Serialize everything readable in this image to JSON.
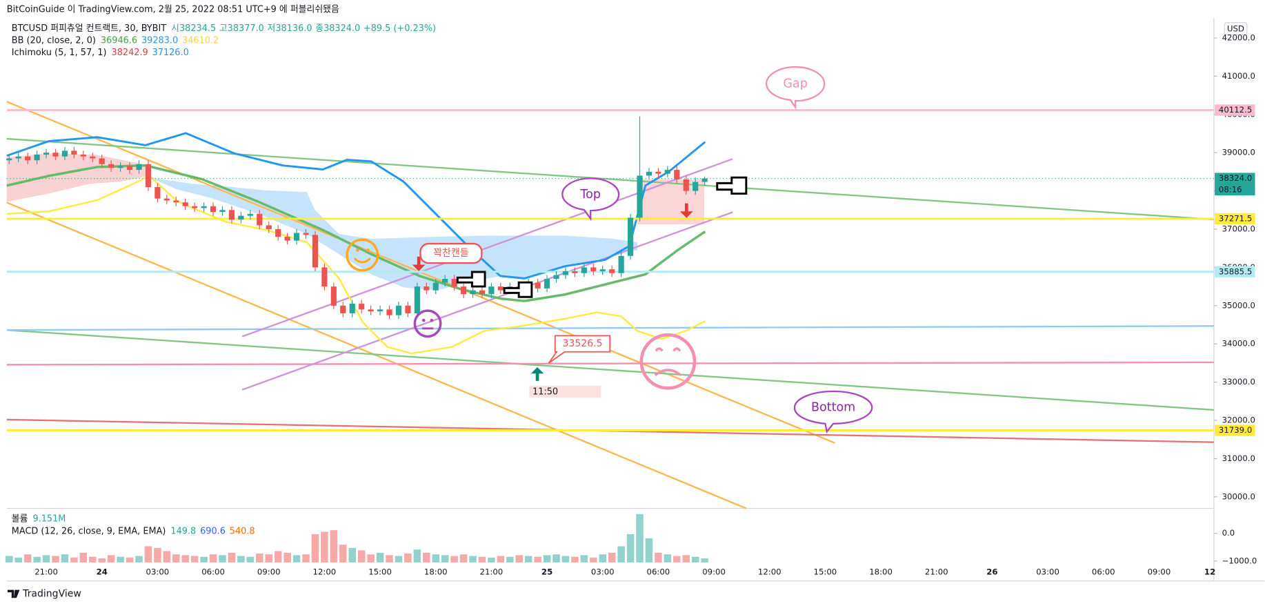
{
  "header": {
    "published": "BitCoinGuide 이 TradingView.com, 2월 25, 2022 08:51 UTC+9 에 퍼블리쉬됐음"
  },
  "chart_data": {
    "type": "candlestick",
    "symbol": "BTCUSD 퍼피츄얼 컨트랙트, 30, BYBIT",
    "ohlc_text": [
      "시38234.5",
      "고38377.0",
      "저38136.0",
      "종38324.0",
      "+89.5 (+0.23%)"
    ],
    "bb_text": {
      "name": "BB (20, close, 2, 0)",
      "basis": "36946.6",
      "upper": "39283.0",
      "lower": "34610.2"
    },
    "ichimoku_text": {
      "name": "Ichimoku (5, 1, 57, 1)",
      "a": "38242.9",
      "b": "37126.0"
    },
    "unit": "USD",
    "up_color": "#26a69a",
    "down_color": "#ef5350",
    "open": [
      38800,
      38850,
      38900,
      38800,
      38950,
      39000,
      38900,
      39050,
      38950,
      38900,
      38850,
      38700,
      38600,
      38650,
      38550,
      38700,
      38100,
      37800,
      37750,
      37700,
      37600,
      37550,
      37600,
      37450,
      37500,
      37250,
      37350,
      37400,
      37100,
      37000,
      36800,
      36700,
      36900,
      36850,
      36000,
      35500,
      35000,
      34800,
      35050,
      34900,
      34850,
      34900,
      34750,
      35000,
      34800,
      35500,
      35400,
      35600,
      35700,
      35500,
      35300,
      35400,
      35300,
      35500,
      35400,
      35500,
      35350,
      35600,
      35450,
      35700,
      35800,
      35900,
      35850,
      36000,
      35900,
      35950,
      35850,
      36300,
      37300,
      38400,
      38500,
      38450,
      38550,
      38300,
      38000,
      38234.5
    ],
    "high": [
      38950,
      39000,
      39000,
      39050,
      39100,
      39100,
      39150,
      39150,
      39050,
      39000,
      38950,
      38800,
      38750,
      38750,
      38800,
      38800,
      38200,
      37900,
      37850,
      37800,
      37700,
      37700,
      37700,
      37600,
      37600,
      37450,
      37500,
      37500,
      37200,
      37100,
      36900,
      37000,
      37000,
      36950,
      36100,
      35600,
      35100,
      35150,
      35150,
      35000,
      35000,
      35000,
      35100,
      35100,
      35600,
      35600,
      35700,
      35800,
      35800,
      35600,
      35500,
      35500,
      35600,
      35600,
      35600,
      35600,
      35700,
      35700,
      35800,
      35900,
      36000,
      36000,
      36100,
      36100,
      36050,
      36050,
      36400,
      37400,
      39950,
      38600,
      38600,
      38650,
      38650,
      38400,
      38350,
      38377
    ],
    "low": [
      38700,
      38750,
      38700,
      38700,
      38850,
      38800,
      38800,
      38850,
      38800,
      38750,
      38600,
      38500,
      38500,
      38450,
      38450,
      38000,
      37700,
      37650,
      37600,
      37500,
      37450,
      37450,
      37350,
      37350,
      37150,
      37150,
      37250,
      37000,
      36900,
      36700,
      36600,
      36600,
      36750,
      35900,
      35400,
      34900,
      34700,
      34700,
      34800,
      34750,
      34750,
      34650,
      34650,
      34700,
      34700,
      35300,
      35300,
      35500,
      35400,
      35200,
      35200,
      35200,
      35200,
      35300,
      35300,
      35250,
      35250,
      35350,
      35350,
      35600,
      35700,
      35750,
      35750,
      35800,
      35800,
      35750,
      35750,
      36200,
      37200,
      38300,
      38350,
      38350,
      38200,
      37900,
      37900,
      38136
    ],
    "close": [
      38850,
      38900,
      38800,
      38950,
      39000,
      38900,
      39050,
      38950,
      38900,
      38850,
      38700,
      38600,
      38650,
      38550,
      38700,
      38100,
      37800,
      37750,
      37700,
      37600,
      37550,
      37600,
      37450,
      37500,
      37250,
      37350,
      37400,
      37100,
      37000,
      36800,
      36700,
      36900,
      36850,
      36000,
      35500,
      35000,
      34800,
      35050,
      34900,
      34850,
      34900,
      34750,
      35000,
      34800,
      35500,
      35400,
      35600,
      35700,
      35500,
      35300,
      35400,
      35300,
      35500,
      35400,
      35500,
      35350,
      35600,
      35450,
      35700,
      35800,
      35900,
      35850,
      36000,
      35900,
      35950,
      35850,
      36300,
      37300,
      38400,
      38500,
      38450,
      38550,
      38300,
      38000,
      38234.5,
      38324
    ],
    "volume": [
      8,
      6,
      10,
      7,
      9,
      8,
      10,
      6,
      12,
      7,
      5,
      9,
      7,
      6,
      8,
      20,
      18,
      14,
      10,
      9,
      8,
      7,
      10,
      9,
      12,
      8,
      7,
      11,
      10,
      14,
      12,
      9,
      10,
      35,
      38,
      40,
      22,
      18,
      15,
      10,
      12,
      9,
      8,
      11,
      16,
      12,
      10,
      9,
      8,
      10,
      8,
      7,
      6,
      8,
      7,
      9,
      8,
      7,
      9,
      10,
      8,
      7,
      9,
      6,
      10,
      12,
      20,
      35,
      60,
      30,
      12,
      10,
      8,
      9,
      7,
      5
    ],
    "vlim": [
      0,
      70
    ],
    "ylim": [
      29750,
      42500
    ],
    "yticks": [
      {
        "value": 30000,
        "label": "30000.0"
      },
      {
        "value": 31000,
        "label": "31000.0"
      },
      {
        "value": 32000,
        "label": "32000.0"
      },
      {
        "value": 33000,
        "label": "33000.0"
      },
      {
        "value": 34000,
        "label": "34000.0"
      },
      {
        "value": 35000,
        "label": "35000.0"
      },
      {
        "value": 36000,
        "label": "36000.0"
      },
      {
        "value": 37000,
        "label": "37000.0"
      },
      {
        "value": 38000,
        "label": "38000.0"
      },
      {
        "value": 39000,
        "label": "39000.0"
      },
      {
        "value": 40000,
        "label": "40000.0"
      },
      {
        "value": 41000,
        "label": "41000.0"
      },
      {
        "value": 42000,
        "label": "42000.0"
      }
    ],
    "price_lines": [
      {
        "value": 40112.5,
        "label": "40112.5",
        "color": "#f8bbd0"
      },
      {
        "value": 38324,
        "label": "38324.0",
        "color": "#26a69a"
      },
      {
        "value": 37271.5,
        "label": "37271.5",
        "color": "#ffeb3b"
      },
      {
        "value": 35885.5,
        "label": "35885.5",
        "color": "#b2ebf2"
      },
      {
        "value": 31739,
        "label": "31739.0",
        "color": "#ffeb3b"
      }
    ],
    "countdown": "08:16",
    "time_labels": [
      "21:00",
      "24",
      "03:00",
      "06:00",
      "09:00",
      "12:00",
      "15:00",
      "18:00",
      "21:00",
      "25",
      "03:00",
      "06:00",
      "09:00",
      "12:00",
      "15:00",
      "18:00",
      "21:00",
      "26",
      "03:00",
      "06:00",
      "09:00",
      "12"
    ],
    "volume_text": {
      "name": "볼륨",
      "value": "9.151M"
    },
    "macd_text": {
      "name": "MACD (12, 26, close, 9, EMA, EMA)",
      "hist": "149.8",
      "macd": "690.6",
      "signal": "540.8"
    },
    "macd_ylim": [
      -1050,
      900
    ],
    "macd_yticks": [
      {
        "value": 0,
        "label": "0.0"
      },
      {
        "value": -1000,
        "label": "−1000.0"
      }
    ]
  },
  "annotations": {
    "gap": "Gap",
    "top": "Top",
    "full_candle": "꽉찬캔들",
    "bottom": "Bottom",
    "price": "33526.5",
    "time": "11:50"
  },
  "footer": "TradingView"
}
